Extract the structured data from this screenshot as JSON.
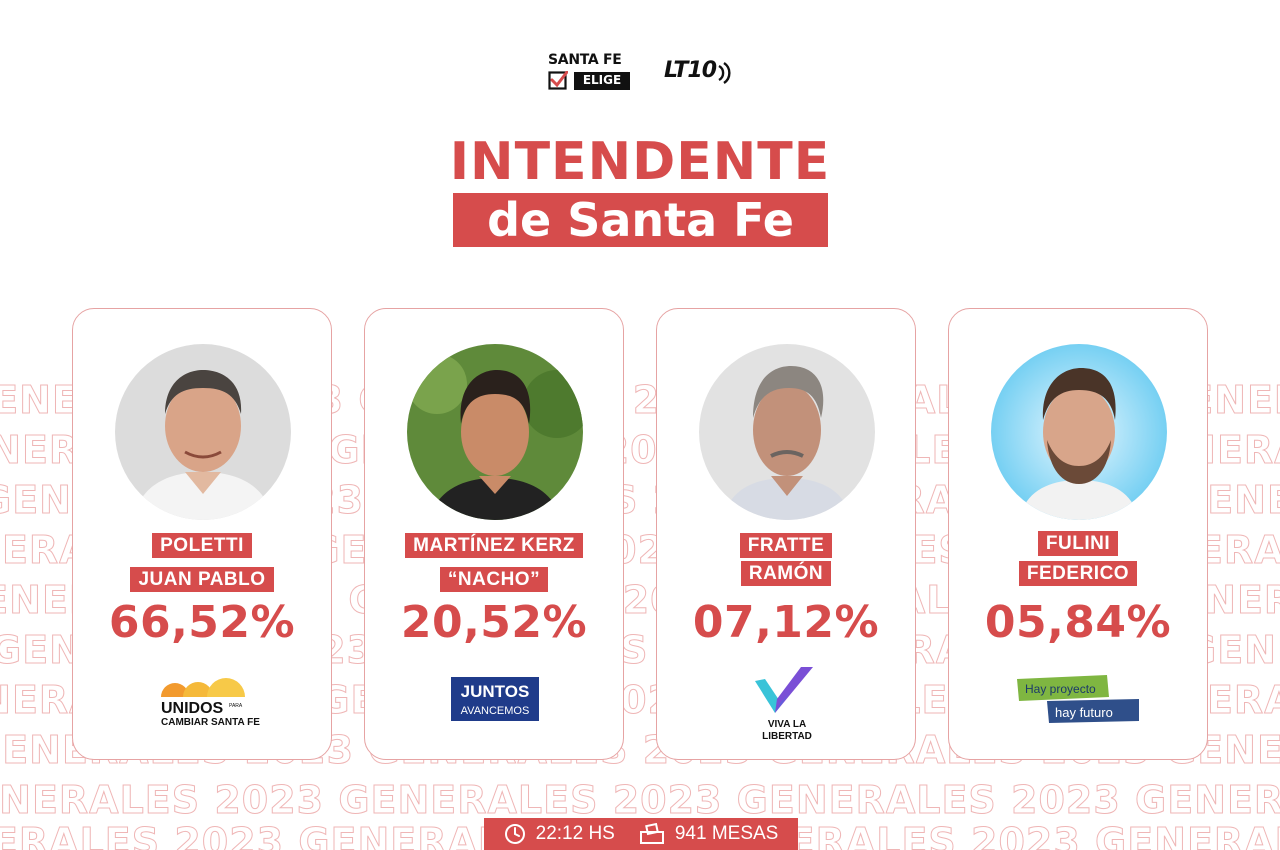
{
  "header": {
    "logo_santafe_line1": "SANTA FE",
    "logo_santafe_line2": "ELIGE",
    "logo_lt10": "LT10"
  },
  "title": {
    "line1": "INTENDENTE",
    "line2": "de Santa Fe"
  },
  "watermark_text": "GENERALES 2023",
  "candidates": [
    {
      "surname": "POLETTI",
      "given": "JUAN PABLO",
      "percent": "66,52%",
      "party": "UNIDOS PARA CAMBIAR SANTA FE",
      "party_logo_text1": "UNIDOS",
      "party_logo_small": "PARA",
      "party_logo_text2": "CAMBIAR SANTA FE"
    },
    {
      "surname": "MARTÍNEZ KERZ",
      "given": "“NACHO”",
      "percent": "20,52%",
      "party": "JUNTOS AVANCEMOS",
      "party_logo_text1": "JUNTOS",
      "party_logo_text2": "AVANCEMOS"
    },
    {
      "surname": "FRATTE",
      "given": "RAMÓN",
      "percent": "07,12%",
      "party": "VIVA LA LIBERTAD",
      "party_logo_text1": "VIVA LA",
      "party_logo_text2": "LIBERTAD"
    },
    {
      "surname": "FULINI",
      "given": "FEDERICO",
      "percent": "05,84%",
      "party": "Hay proyecto hay futuro",
      "party_logo_text1": "Hay proyecto",
      "party_logo_text2": "hay futuro"
    }
  ],
  "footer": {
    "time": "22:12 HS",
    "tables": "941 MESAS",
    "clock_icon": "clock-icon",
    "ballot_icon": "ballot-box-icon"
  },
  "colors": {
    "accent": "#d64c4c",
    "border": "#e6a3a3",
    "watermark": "#efb6b6"
  }
}
